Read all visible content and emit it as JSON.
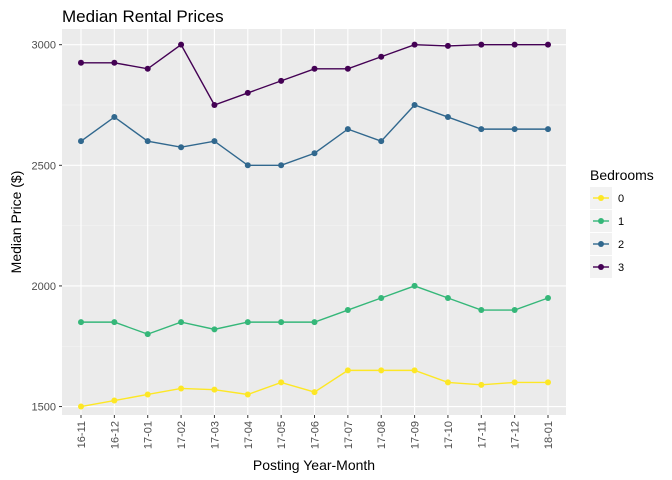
{
  "chart_data": {
    "type": "line",
    "title": "Median Rental Prices",
    "xlabel": "Posting Year-Month",
    "ylabel": "Median Price ($)",
    "categories": [
      "16-11",
      "16-12",
      "17-01",
      "17-02",
      "17-03",
      "17-04",
      "17-05",
      "17-06",
      "17-07",
      "17-08",
      "17-09",
      "17-10",
      "17-11",
      "17-12",
      "18-01"
    ],
    "ylim": [
      1465,
      3065
    ],
    "yticks": [
      1500,
      2000,
      2500,
      3000
    ],
    "grid": true,
    "legend": {
      "title": "Bedrooms",
      "position": "right"
    },
    "series": [
      {
        "name": "0",
        "color": "#fde725",
        "values": [
          1500,
          1525,
          1550,
          1575,
          1570,
          1550,
          1600,
          1560,
          1650,
          1650,
          1650,
          1600,
          1590,
          1600,
          1600
        ]
      },
      {
        "name": "1",
        "color": "#35b779",
        "values": [
          1850,
          1850,
          1800,
          1850,
          1820,
          1850,
          1850,
          1850,
          1900,
          1950,
          2000,
          1950,
          1900,
          1900,
          1950
        ]
      },
      {
        "name": "2",
        "color": "#31688e",
        "values": [
          2600,
          2700,
          2600,
          2575,
          2600,
          2500,
          2500,
          2550,
          2650,
          2600,
          2750,
          2700,
          2650,
          2650,
          2650
        ]
      },
      {
        "name": "3",
        "color": "#440154",
        "values": [
          2925,
          2925,
          2900,
          3000,
          2750,
          2800,
          2850,
          2900,
          2900,
          2950,
          3000,
          2995,
          3000,
          3000,
          3000
        ]
      }
    ]
  }
}
